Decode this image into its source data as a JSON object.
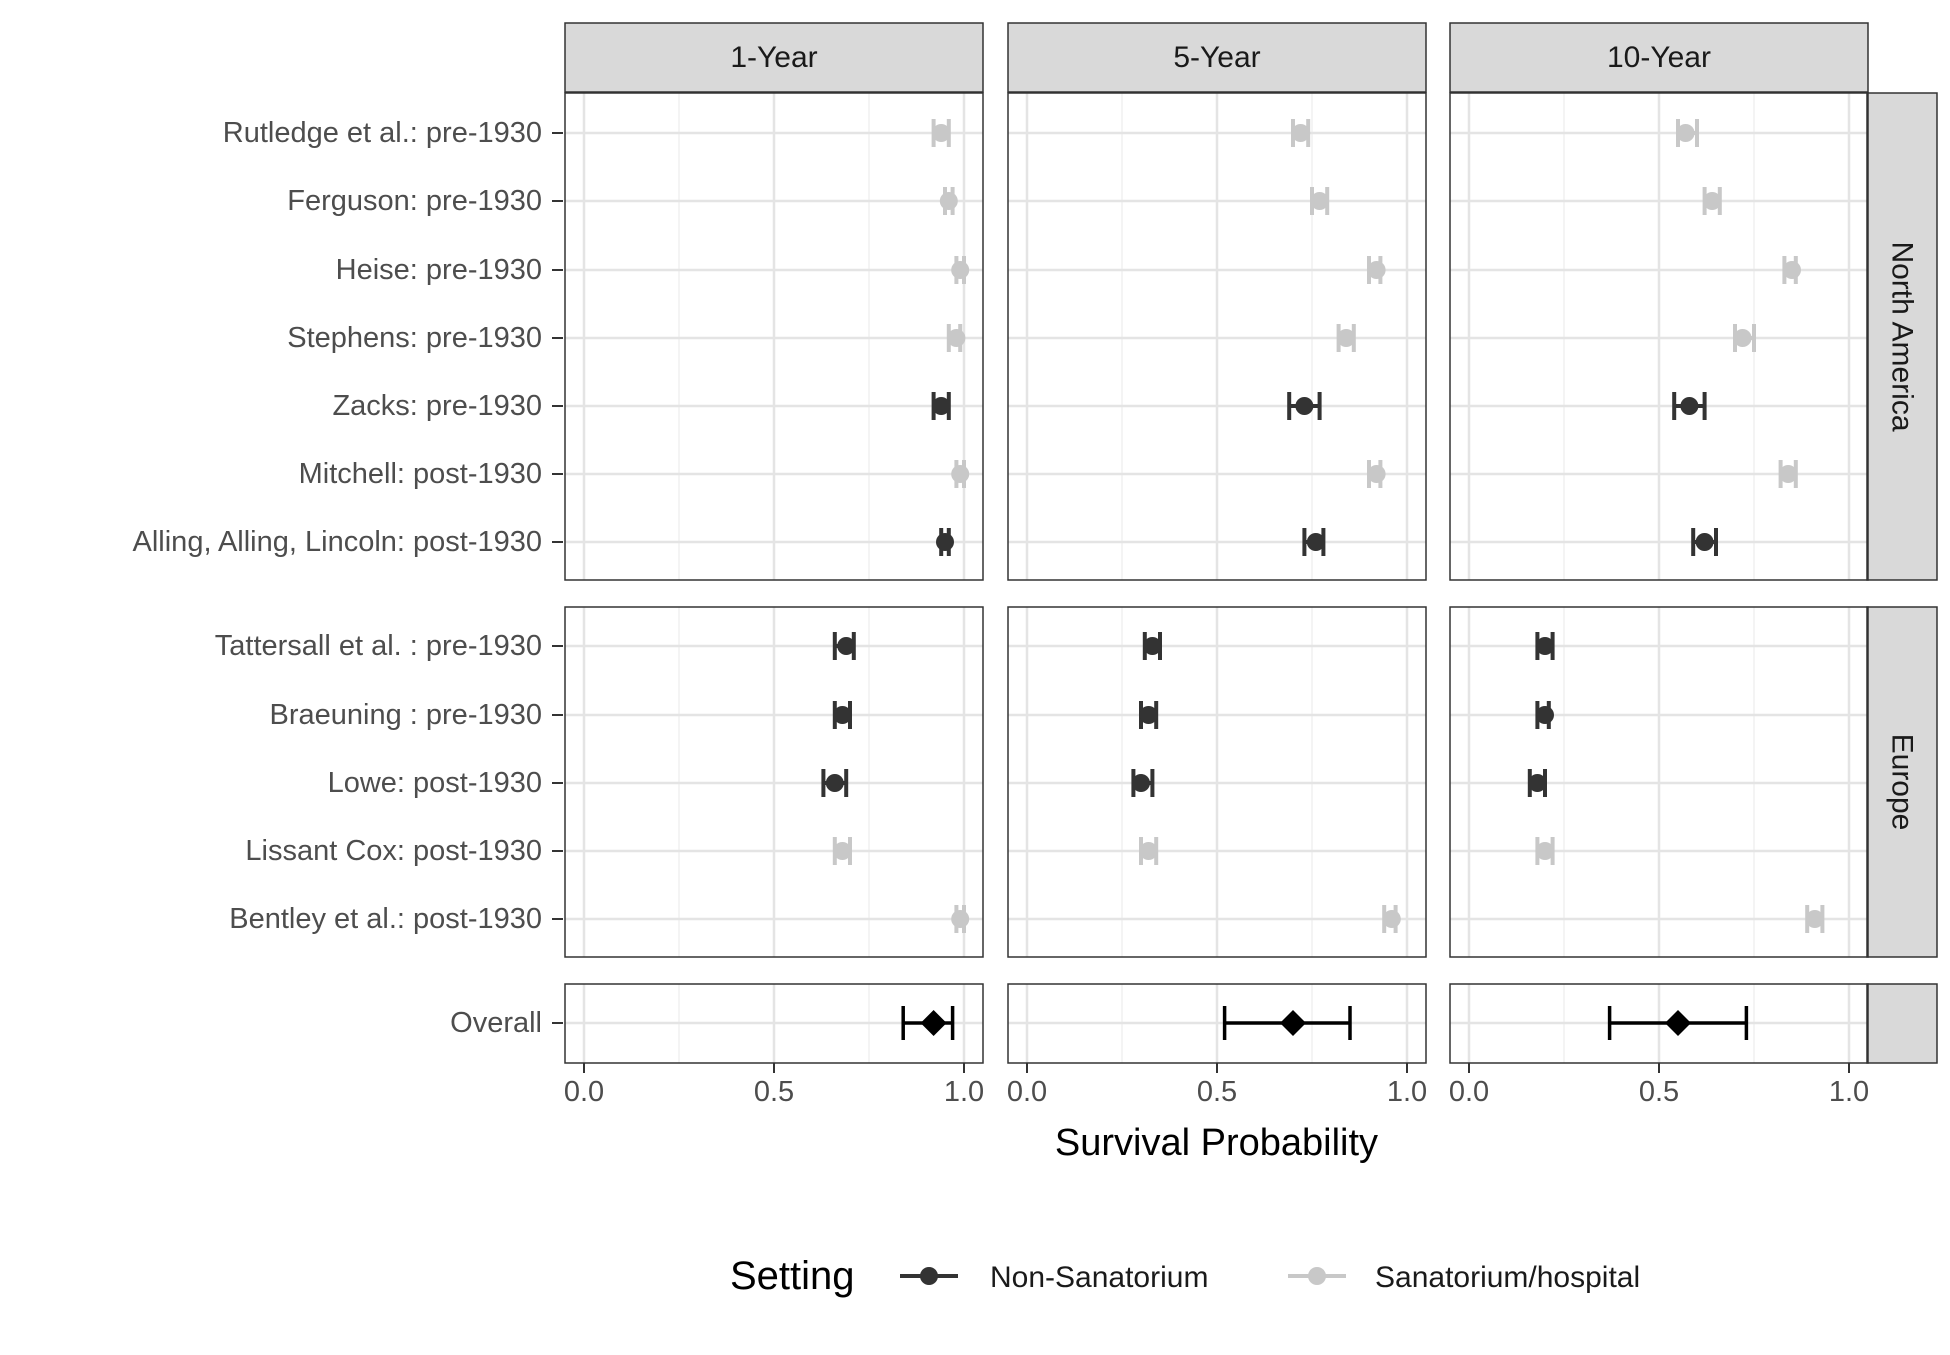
{
  "chart_data": {
    "type": "forest",
    "xlabel": "Survival Probability",
    "xlim": [
      -0.05,
      1.05
    ],
    "xticks": [
      0.0,
      0.5,
      1.0
    ],
    "xtick_labels": [
      "0.0",
      "0.5",
      "1.0"
    ],
    "grid": true,
    "legend": {
      "title": "Setting",
      "position": "bottom",
      "entries": [
        {
          "key": "non",
          "label": "Non-Sanatorium"
        },
        {
          "key": "san",
          "label": "Sanatorium/hospital"
        }
      ]
    },
    "colors": {
      "non": "#333333",
      "san": "#c8c8c8",
      "overall": "#000000"
    },
    "columns": [
      "1-Year",
      "5-Year",
      "10-Year"
    ],
    "rows": [
      {
        "label": "North America",
        "studies": [
          {
            "label": "Rutledge et al.: pre-1930",
            "setting": "san",
            "est": [
              0.94,
              0.72,
              0.57
            ],
            "lo": [
              0.92,
              0.7,
              0.55
            ],
            "hi": [
              0.96,
              0.74,
              0.6
            ]
          },
          {
            "label": "Ferguson: pre-1930",
            "setting": "san",
            "est": [
              0.96,
              0.77,
              0.64
            ],
            "lo": [
              0.95,
              0.75,
              0.62
            ],
            "hi": [
              0.97,
              0.79,
              0.66
            ]
          },
          {
            "label": "Heise: pre-1930",
            "setting": "san",
            "est": [
              0.99,
              0.92,
              0.85
            ],
            "lo": [
              0.98,
              0.9,
              0.83
            ],
            "hi": [
              1.0,
              0.93,
              0.86
            ]
          },
          {
            "label": "Stephens: pre-1930",
            "setting": "san",
            "est": [
              0.98,
              0.84,
              0.72
            ],
            "lo": [
              0.96,
              0.82,
              0.7
            ],
            "hi": [
              0.99,
              0.86,
              0.75
            ]
          },
          {
            "label": "Zacks: pre-1930",
            "setting": "non",
            "est": [
              0.94,
              0.73,
              0.58
            ],
            "lo": [
              0.92,
              0.69,
              0.54
            ],
            "hi": [
              0.96,
              0.77,
              0.62
            ]
          },
          {
            "label": "Mitchell: post-1930",
            "setting": "san",
            "est": [
              0.99,
              0.92,
              0.84
            ],
            "lo": [
              0.98,
              0.9,
              0.82
            ],
            "hi": [
              1.0,
              0.93,
              0.86
            ]
          },
          {
            "label": "Alling, Alling, Lincoln: post-1930",
            "setting": "non",
            "est": [
              0.95,
              0.76,
              0.62
            ],
            "lo": [
              0.94,
              0.73,
              0.59
            ],
            "hi": [
              0.96,
              0.78,
              0.65
            ]
          }
        ]
      },
      {
        "label": "Europe",
        "studies": [
          {
            "label": "Tattersall et al. : pre-1930",
            "setting": "non",
            "est": [
              0.69,
              0.33,
              0.2
            ],
            "lo": [
              0.66,
              0.31,
              0.18
            ],
            "hi": [
              0.71,
              0.35,
              0.22
            ]
          },
          {
            "label": "Braeuning : pre-1930",
            "setting": "non",
            "est": [
              0.68,
              0.32,
              0.2
            ],
            "lo": [
              0.66,
              0.3,
              0.18
            ],
            "hi": [
              0.7,
              0.34,
              0.21
            ]
          },
          {
            "label": "Lowe: post-1930",
            "setting": "non",
            "est": [
              0.66,
              0.3,
              0.18
            ],
            "lo": [
              0.63,
              0.28,
              0.16
            ],
            "hi": [
              0.69,
              0.33,
              0.2
            ]
          },
          {
            "label": "Lissant Cox: post-1930",
            "setting": "san",
            "est": [
              0.68,
              0.32,
              0.2
            ],
            "lo": [
              0.66,
              0.3,
              0.18
            ],
            "hi": [
              0.7,
              0.34,
              0.22
            ]
          },
          {
            "label": "Bentley et al.: post-1930",
            "setting": "san",
            "est": [
              0.99,
              0.96,
              0.91
            ],
            "lo": [
              0.98,
              0.94,
              0.89
            ],
            "hi": [
              1.0,
              0.97,
              0.93
            ]
          }
        ]
      },
      {
        "label": "",
        "studies": [
          {
            "label": "Overall",
            "setting": "overall",
            "est": [
              0.92,
              0.7,
              0.55
            ],
            "lo": [
              0.84,
              0.52,
              0.37
            ],
            "hi": [
              0.97,
              0.85,
              0.73
            ]
          }
        ]
      }
    ]
  }
}
